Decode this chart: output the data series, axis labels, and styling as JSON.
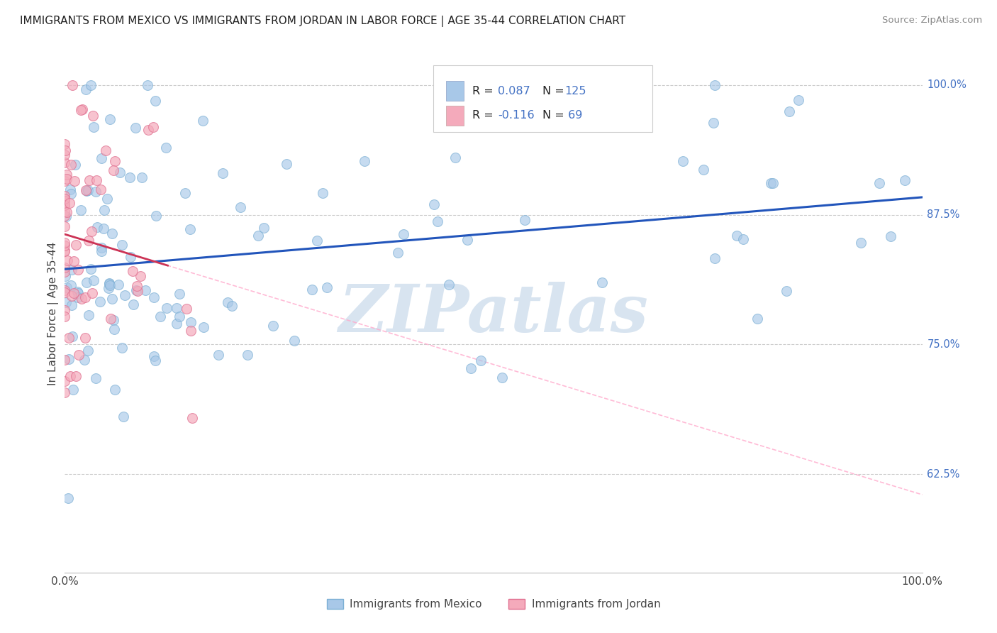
{
  "title": "IMMIGRANTS FROM MEXICO VS IMMIGRANTS FROM JORDAN IN LABOR FORCE | AGE 35-44 CORRELATION CHART",
  "source": "Source: ZipAtlas.com",
  "ylabel": "In Labor Force | Age 35-44",
  "legend_label1": "Immigrants from Mexico",
  "legend_label2": "Immigrants from Jordan",
  "blue_color": "#A8C8E8",
  "blue_edge_color": "#7BAFD4",
  "pink_color": "#F4AABB",
  "pink_edge_color": "#E07090",
  "blue_line_color": "#2255BB",
  "jordan_line_color": "#F4AABB",
  "R_text_color": "#4472C4",
  "N_mexico": 125,
  "N_jordan": 69,
  "background_color": "#FFFFFF",
  "watermark_text": "ZIPatlas",
  "watermark_color": "#D8E4F0",
  "xlim": [
    0.0,
    1.0
  ],
  "ylim": [
    0.53,
    1.03
  ],
  "y_ticks": [
    0.625,
    0.75,
    0.875,
    1.0
  ],
  "y_tick_labels": [
    "62.5%",
    "75.0%",
    "87.5%",
    "100.0%"
  ],
  "grid_color": "#CCCCCC"
}
